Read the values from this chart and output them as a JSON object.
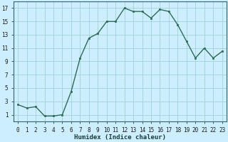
{
  "xlabel": "Humidex (Indice chaleur)",
  "x": [
    0,
    1,
    2,
    3,
    4,
    5,
    6,
    7,
    8,
    9,
    10,
    11,
    12,
    13,
    14,
    15,
    16,
    17,
    18,
    19,
    20,
    21,
    22,
    23
  ],
  "y": [
    2.5,
    2.0,
    2.2,
    0.8,
    0.8,
    1.0,
    4.5,
    9.5,
    12.5,
    13.2,
    15.0,
    15.0,
    17.0,
    16.5,
    16.5,
    15.5,
    16.8,
    16.5,
    14.5,
    12.0,
    9.5,
    11.0,
    9.5,
    10.5
  ],
  "line_color": "#2e6b57",
  "marker_color": "#2e6b57",
  "bg_color": "#cceeff",
  "grid_color": "#99cccc",
  "ylim": [
    0,
    18
  ],
  "xlim": [
    -0.5,
    23.5
  ],
  "yticks": [
    1,
    3,
    5,
    7,
    9,
    11,
    13,
    15,
    17
  ],
  "xticks": [
    0,
    1,
    2,
    3,
    4,
    5,
    6,
    7,
    8,
    9,
    10,
    11,
    12,
    13,
    14,
    15,
    16,
    17,
    18,
    19,
    20,
    21,
    22,
    23
  ],
  "tick_fontsize": 5.5,
  "label_fontsize": 6.5
}
